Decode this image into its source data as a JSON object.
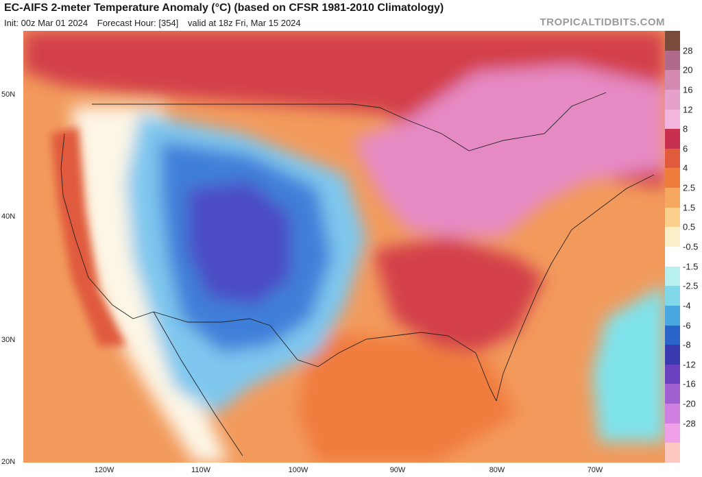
{
  "header": {
    "title": "EC-AIFS 2-meter Temperature Anomaly (°C) (based on CFSR 1981-2010 Climatology)",
    "init": "Init: 00z Mar 01 2024",
    "forecast_hour": "Forecast Hour: [354]",
    "valid": "valid at 18z Fri, Mar 15 2024",
    "brand": "TROPICALTIDBITS.COM"
  },
  "axes": {
    "lat_labels": [
      "50N",
      "40N",
      "30N",
      "20N"
    ],
    "lon_labels": [
      "120W",
      "110W",
      "100W",
      "90W",
      "80W",
      "70W"
    ]
  },
  "colorbar": {
    "labels": [
      "28",
      "20",
      "16",
      "12",
      "8",
      "6",
      "4",
      "2.5",
      "1.5",
      "0.5",
      "-0.5",
      "-1.5",
      "-2.5",
      "-4",
      "-6",
      "-8",
      "-12",
      "-16",
      "-20",
      "-28"
    ],
    "colors": [
      "#7a4a3a",
      "#b06a8a",
      "#d48ab0",
      "#e6a0cc",
      "#f2b6de",
      "#c83050",
      "#e05a3c",
      "#f07c3e",
      "#f6a860",
      "#fbd08c",
      "#fdf0c8",
      "#ffffff",
      "#b8f0f0",
      "#80d8e8",
      "#4aa8e0",
      "#2a64c8",
      "#3a3ab0",
      "#6a40c0",
      "#a060d0",
      "#d080e0",
      "#f0a0e8",
      "#ffc8c0"
    ]
  },
  "map": {
    "colors": {
      "ocean_warm": "#f29a5c",
      "warm_strong": "#d33f49",
      "warm_extreme": "#e68ac4",
      "cold_core": "#4b4bc4",
      "cold": "#3f7fd9",
      "cool": "#7fc7ee",
      "neutral": "#fdf6e6",
      "ocean_cool": "#7fe3ec"
    }
  }
}
